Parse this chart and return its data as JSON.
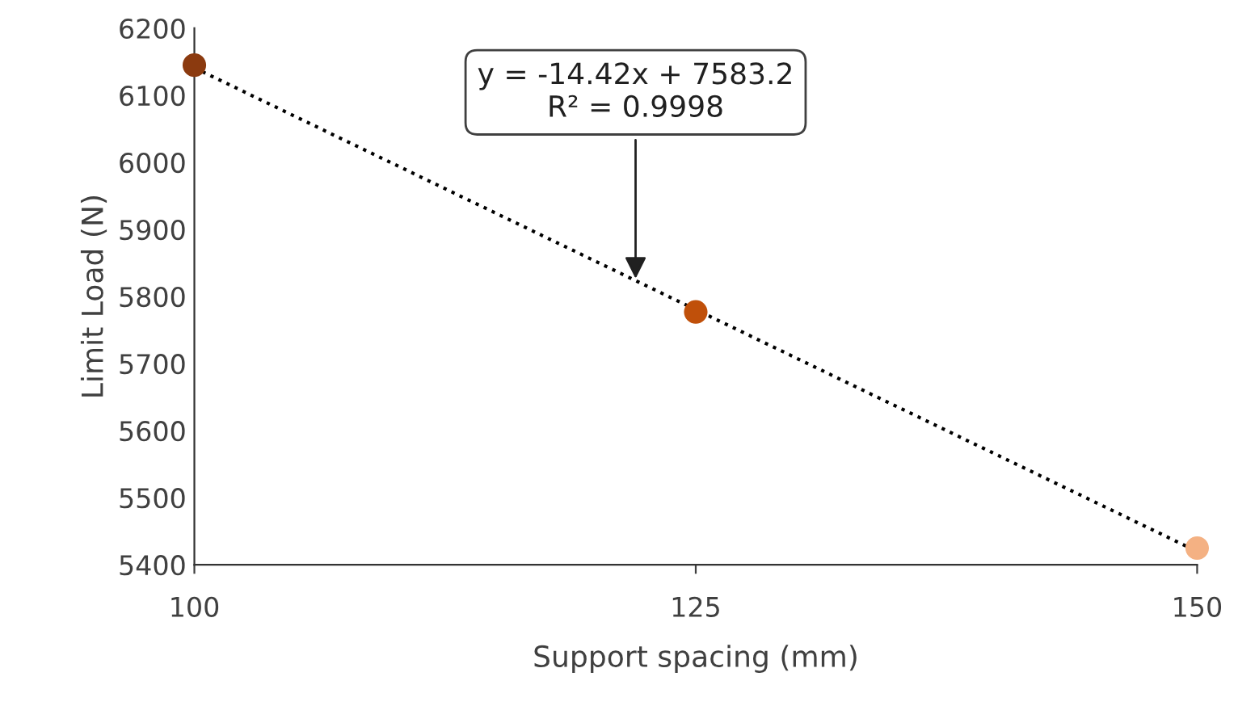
{
  "chart_data": {
    "type": "scatter",
    "xlabel": "Support spacing (mm)",
    "ylabel": "Limit Load (N)",
    "series": [
      {
        "x": [
          100,
          125,
          150
        ],
        "values": [
          6145,
          5777,
          5425
        ],
        "colors": [
          "#8b3a0f",
          "#c0500a",
          "#f4b183"
        ],
        "marker": "circle"
      },
      {
        "type": "line",
        "x": [
          100,
          150
        ],
        "values": [
          6141,
          5420
        ],
        "color": "#000000",
        "line_style": "dotted"
      }
    ],
    "annotations": [
      {
        "text": "y = -14.42x + 7583.2\nR² = 0.9998",
        "x": 122,
        "y": 5820
      }
    ],
    "xlim": [
      100,
      150
    ],
    "xticks": [
      100,
      125,
      150
    ],
    "ylim": [
      5400,
      6200
    ],
    "yticks": [
      5400,
      5500,
      5600,
      5700,
      5800,
      5900,
      6000,
      6100,
      6200
    ],
    "grid": false,
    "legend": false
  }
}
